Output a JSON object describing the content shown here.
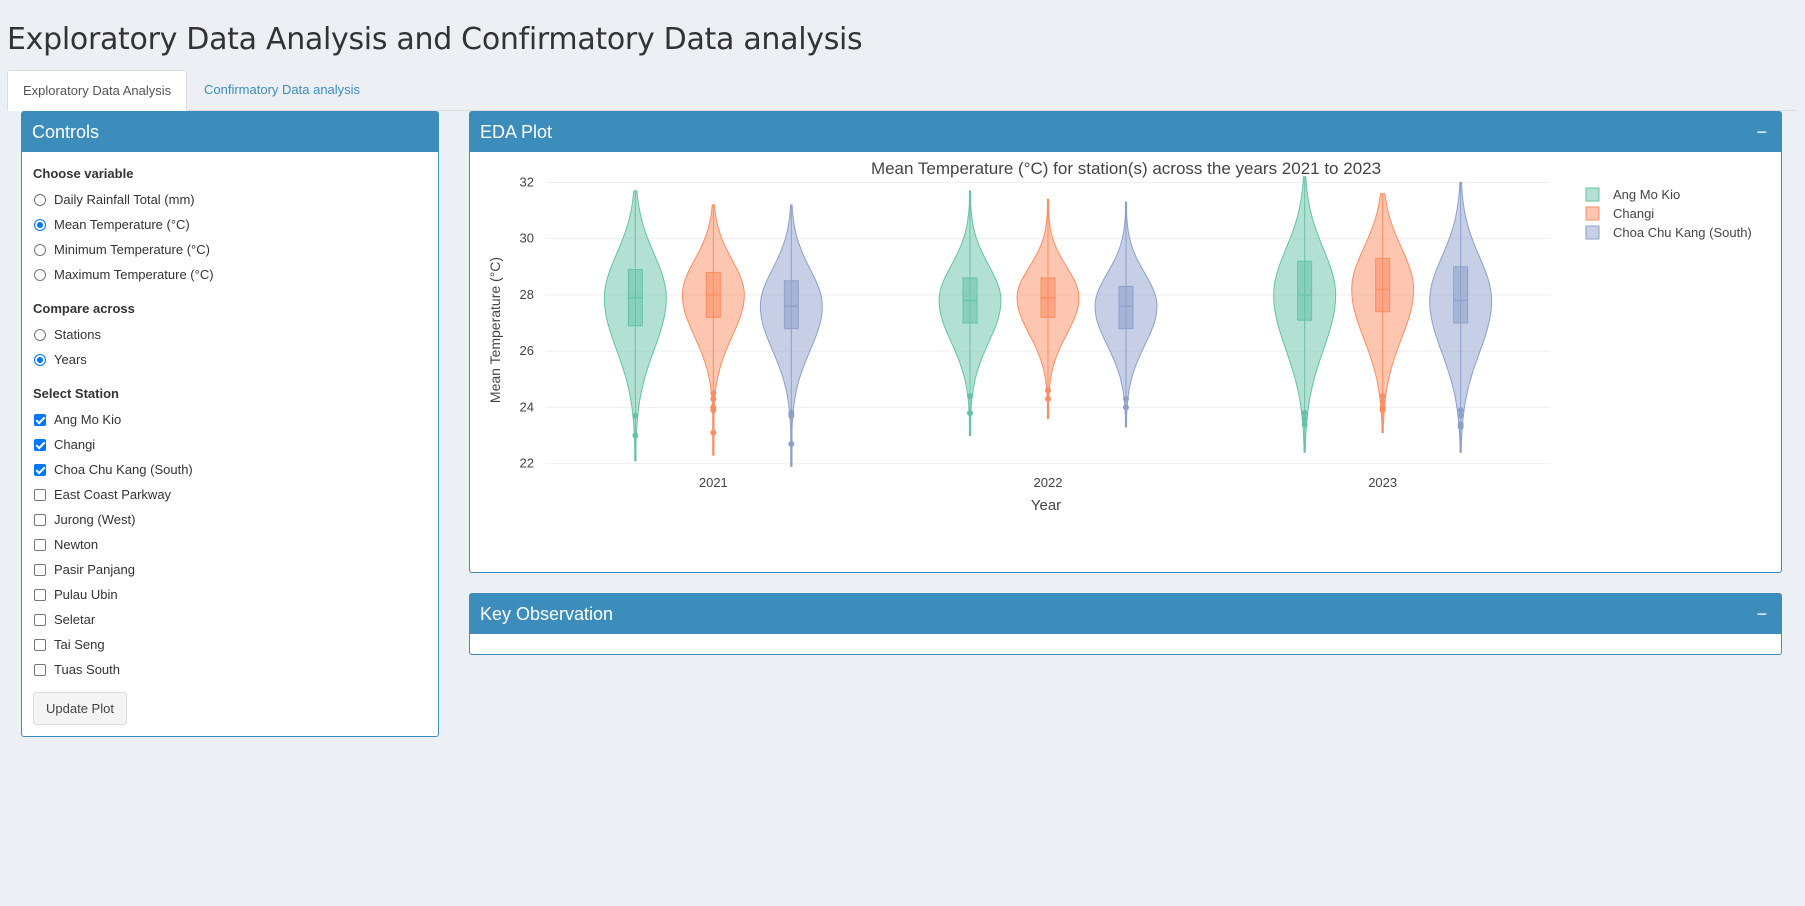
{
  "page_title": "Exploratory Data Analysis and Confirmatory Data analysis",
  "tabs": [
    {
      "label": "Exploratory Data Analysis",
      "active": true
    },
    {
      "label": "Confirmatory Data analysis",
      "active": false
    }
  ],
  "controls": {
    "title": "Controls",
    "variable_label": "Choose variable",
    "variables": [
      {
        "label": "Daily Rainfall Total (mm)",
        "selected": false
      },
      {
        "label": "Mean Temperature (°C)",
        "selected": true
      },
      {
        "label": "Minimum Temperature (°C)",
        "selected": false
      },
      {
        "label": "Maximum Temperature (°C)",
        "selected": false
      }
    ],
    "compare_label": "Compare across",
    "compare_options": [
      {
        "label": "Stations",
        "selected": false
      },
      {
        "label": "Years",
        "selected": true
      }
    ],
    "station_label": "Select Station",
    "stations": [
      {
        "label": "Ang Mo Kio",
        "checked": true
      },
      {
        "label": "Changi",
        "checked": true
      },
      {
        "label": "Choa Chu Kang (South)",
        "checked": true
      },
      {
        "label": "East Coast Parkway",
        "checked": false
      },
      {
        "label": "Jurong (West)",
        "checked": false
      },
      {
        "label": "Newton",
        "checked": false
      },
      {
        "label": "Pasir Panjang",
        "checked": false
      },
      {
        "label": "Pulau Ubin",
        "checked": false
      },
      {
        "label": "Seletar",
        "checked": false
      },
      {
        "label": "Tai Seng",
        "checked": false
      },
      {
        "label": "Tuas South",
        "checked": false
      }
    ],
    "update_label": "Update Plot"
  },
  "eda_box": {
    "title": "EDA Plot",
    "collapse_glyph": "−"
  },
  "key_box": {
    "title": "Key Observation",
    "collapse_glyph": "−"
  },
  "chart_data": {
    "type": "violin",
    "title": "Mean Temperature (°C) for station(s) across the years 2021 to 2023",
    "xlabel": "Year",
    "ylabel": "Mean Temperature (°C)",
    "categories": [
      "2021",
      "2022",
      "2023"
    ],
    "ylim": [
      21.7,
      32.3
    ],
    "yticks": [
      22,
      24,
      26,
      28,
      30,
      32
    ],
    "grid": true,
    "legend_position": "top-right",
    "series": [
      {
        "name": "Ang Mo Kio",
        "color": "#66c2a5",
        "stats": [
          {
            "min": 22.1,
            "max": 31.7,
            "q1": 26.9,
            "median": 27.9,
            "q3": 28.9,
            "outliers": [
              23.7,
              23.0
            ]
          },
          {
            "min": 23.0,
            "max": 31.7,
            "q1": 27.0,
            "median": 27.8,
            "q3": 28.6,
            "outliers": [
              24.4,
              23.8
            ]
          },
          {
            "min": 22.4,
            "max": 32.2,
            "q1": 27.1,
            "median": 28.0,
            "q3": 29.2,
            "outliers": [
              23.8,
              23.6,
              23.4
            ]
          }
        ]
      },
      {
        "name": "Changi",
        "color": "#fc8d62",
        "stats": [
          {
            "min": 22.3,
            "max": 31.2,
            "q1": 27.2,
            "median": 28.0,
            "q3": 28.8,
            "outliers": [
              24.5,
              24.3,
              24.0,
              23.9,
              23.1
            ]
          },
          {
            "min": 23.6,
            "max": 31.4,
            "q1": 27.2,
            "median": 27.9,
            "q3": 28.6,
            "outliers": [
              24.6,
              24.3
            ]
          },
          {
            "min": 23.1,
            "max": 31.6,
            "q1": 27.4,
            "median": 28.2,
            "q3": 29.3,
            "outliers": [
              24.4,
              24.2,
              24.0,
              23.9
            ]
          }
        ]
      },
      {
        "name": "Choa Chu Kang (South)",
        "color": "#8da0cb",
        "stats": [
          {
            "min": 21.9,
            "max": 31.2,
            "q1": 26.8,
            "median": 27.6,
            "q3": 28.5,
            "outliers": [
              23.8,
              23.7,
              22.7
            ]
          },
          {
            "min": 23.3,
            "max": 31.3,
            "q1": 26.8,
            "median": 27.6,
            "q3": 28.3,
            "outliers": [
              24.3,
              24.0
            ]
          },
          {
            "min": 22.4,
            "max": 32.0,
            "q1": 27.0,
            "median": 27.8,
            "q3": 29.0,
            "outliers": [
              23.9,
              23.7,
              23.4,
              23.3
            ]
          }
        ]
      }
    ]
  }
}
